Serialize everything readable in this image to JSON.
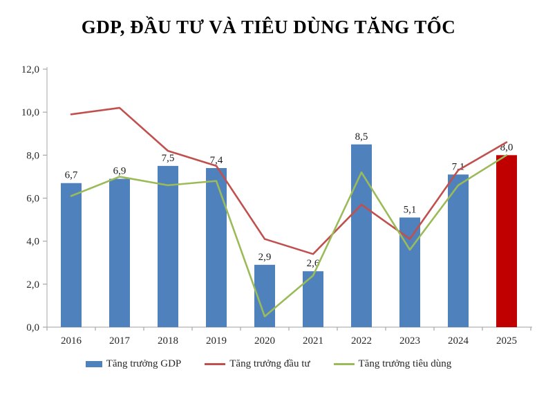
{
  "title": "GDP, ĐẦU TƯ VÀ TIÊU DÙNG TĂNG TỐC",
  "chart_data": {
    "type": "bar",
    "subtype": "bar-line-combo",
    "title": "GDP, ĐẦU TƯ VÀ TIÊU DÙNG TĂNG TỐC",
    "categories": [
      "2016",
      "2017",
      "2018",
      "2019",
      "2020",
      "2021",
      "2022",
      "2023",
      "2024",
      "2025"
    ],
    "series": [
      {
        "name": "Tăng trưởng GDP",
        "type": "bar",
        "values": [
          6.7,
          6.9,
          7.5,
          7.4,
          2.9,
          2.6,
          8.5,
          5.1,
          7.1,
          8.0
        ],
        "labels": [
          "6,7",
          "6,9",
          "7,5",
          "7,4",
          "2,9",
          "2,6",
          "8,5",
          "5,1",
          "7,1",
          "8,0"
        ],
        "bar_colors": [
          "#4f81bd",
          "#4f81bd",
          "#4f81bd",
          "#4f81bd",
          "#4f81bd",
          "#4f81bd",
          "#4f81bd",
          "#4f81bd",
          "#4f81bd",
          "#c00000"
        ]
      },
      {
        "name": "Tăng trưởng đầu tư",
        "type": "line",
        "color": "#c0504d",
        "values": [
          9.9,
          10.2,
          8.2,
          7.5,
          4.1,
          3.4,
          5.7,
          4.1,
          7.3,
          8.6
        ]
      },
      {
        "name": "Tăng trưởng tiêu dùng",
        "type": "line",
        "color": "#9bbb59",
        "values": [
          6.1,
          7.0,
          6.6,
          6.8,
          0.5,
          2.4,
          7.2,
          3.6,
          6.6,
          8.0
        ]
      }
    ],
    "ylim": [
      0,
      12
    ],
    "yticks": [
      0,
      2,
      4,
      6,
      8,
      10,
      12
    ],
    "ytick_labels": [
      "0,0",
      "2,0",
      "4,0",
      "6,0",
      "8,0",
      "10,0",
      "12,0"
    ],
    "grid": false,
    "legend_position": "bottom",
    "axis_color": "#bfbfbf",
    "tick_color": "#a6a6a6",
    "text_color": "#262626",
    "highlight_color": "#c00000"
  }
}
